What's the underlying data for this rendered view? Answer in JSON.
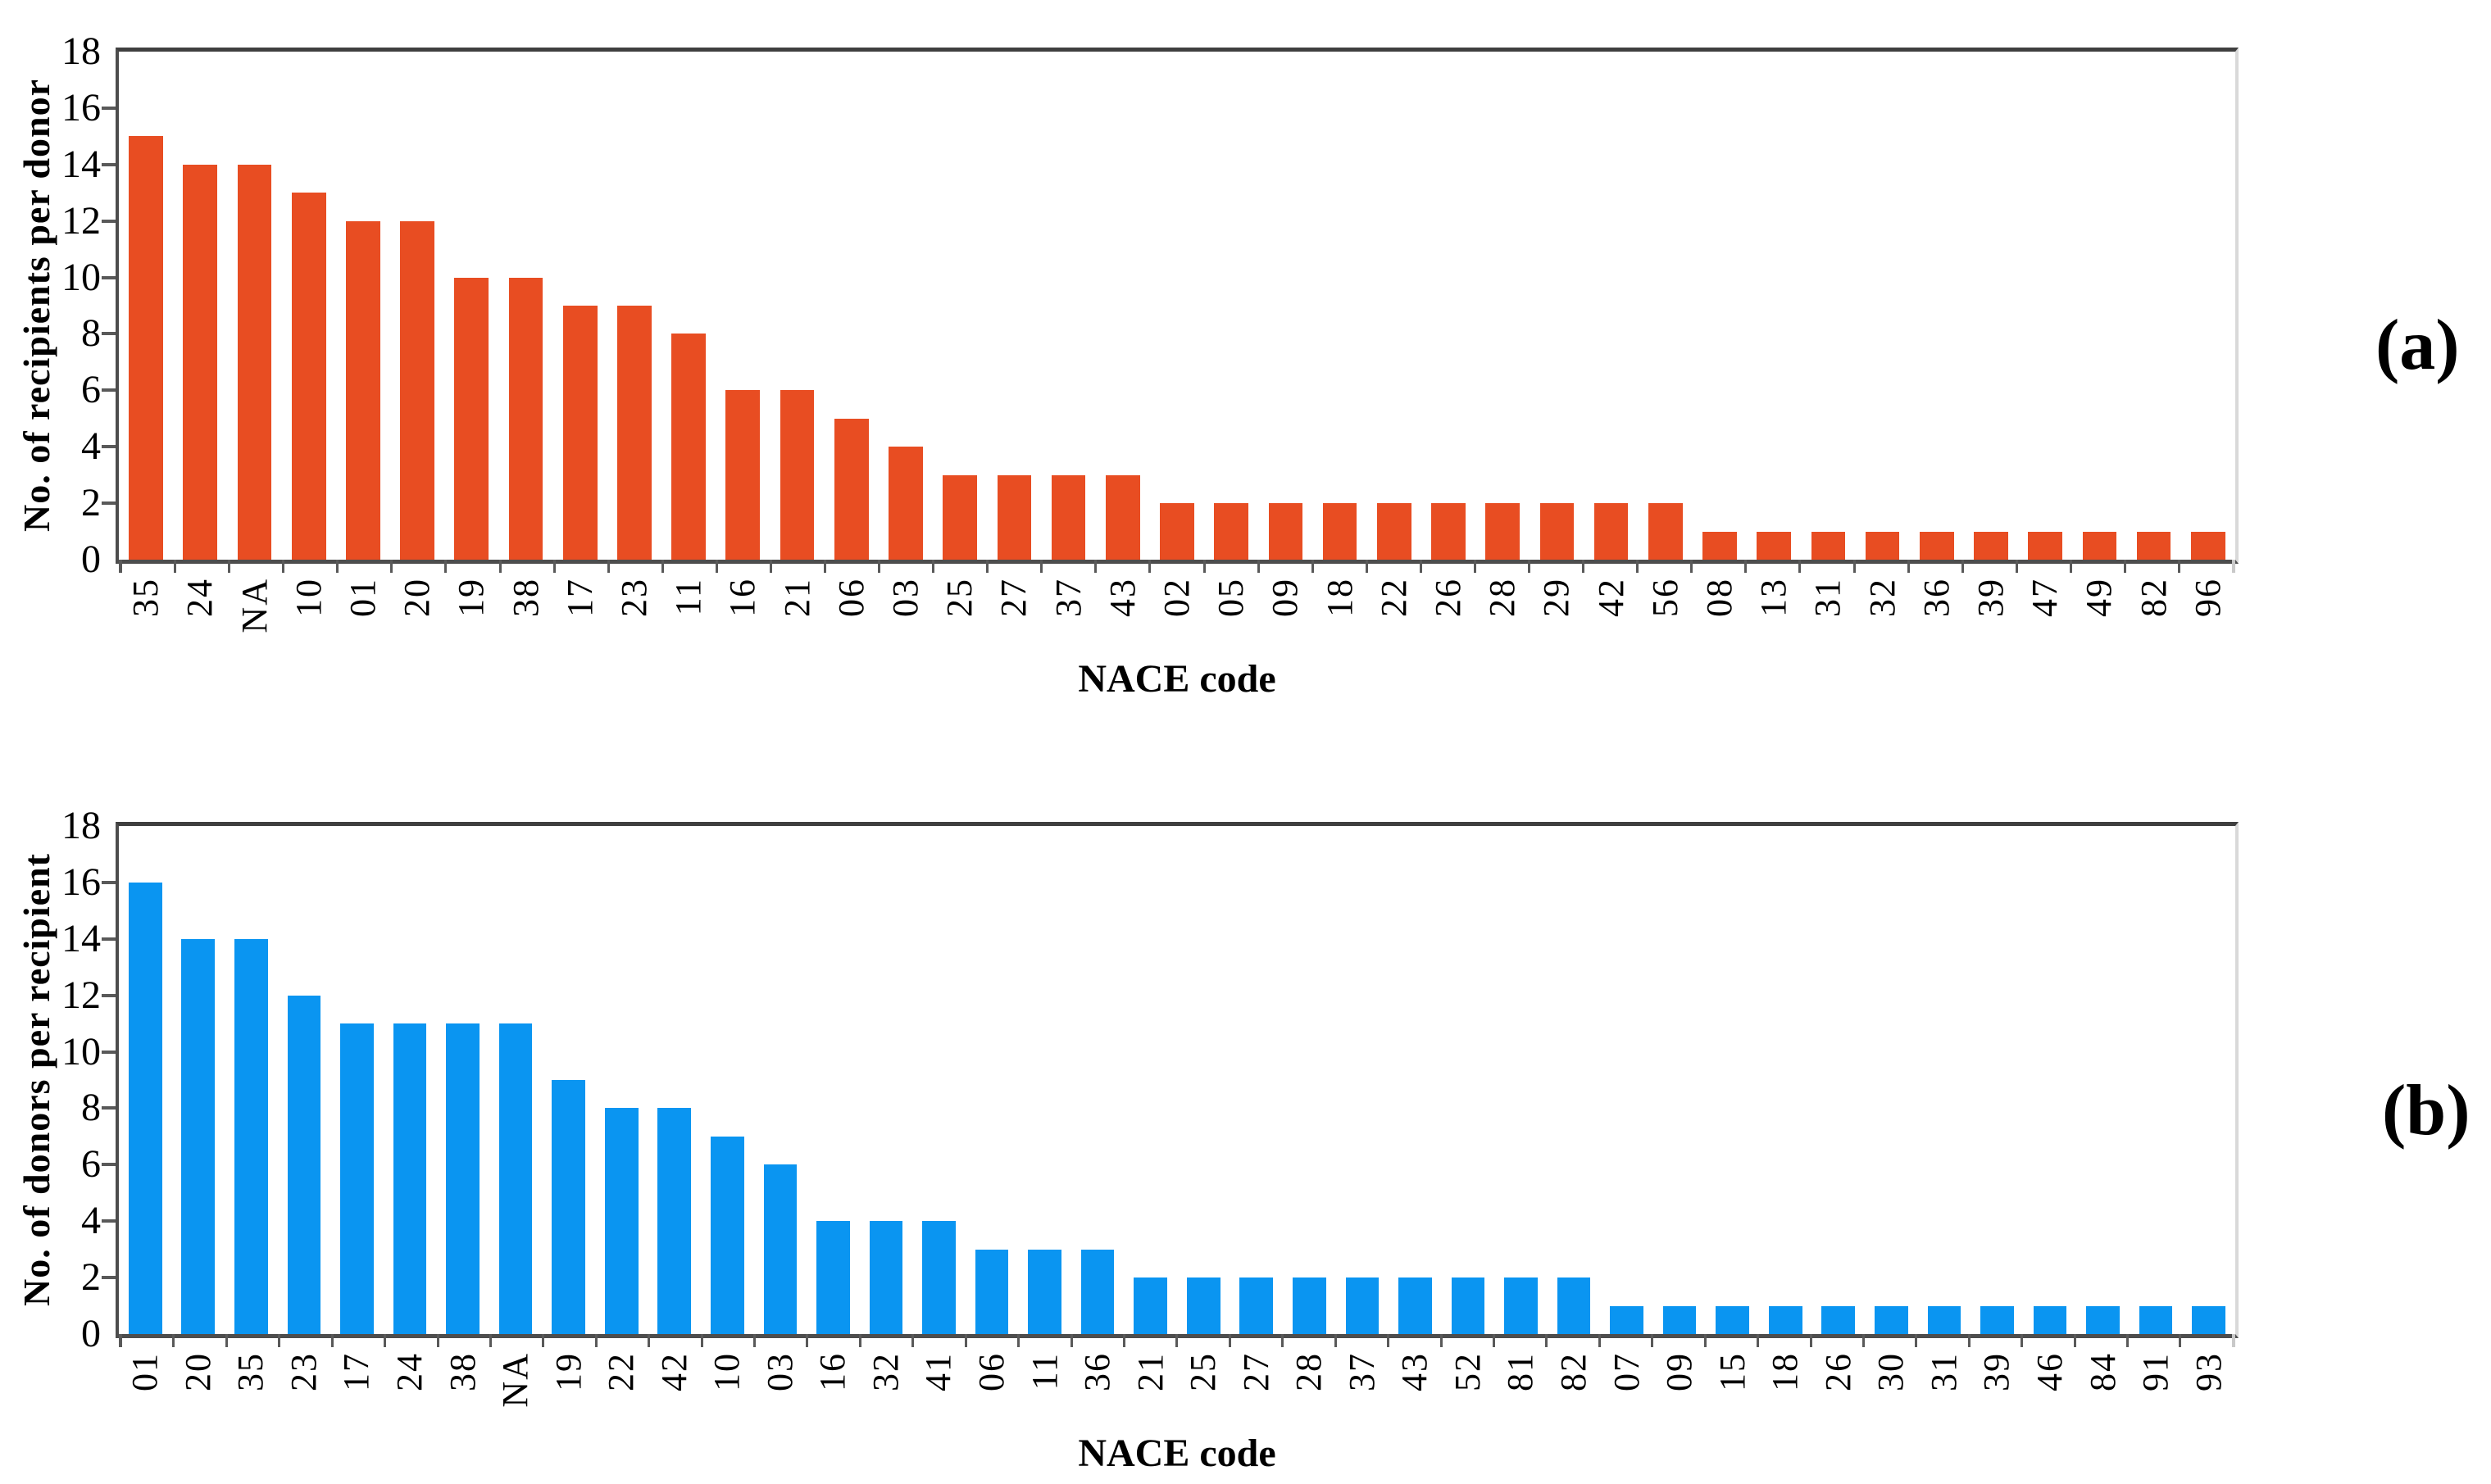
{
  "figure": {
    "background": "#ffffff"
  },
  "chart_data": [
    {
      "id": "a",
      "type": "bar",
      "panel_label": "(a)",
      "title": "",
      "xlabel": "NACE code",
      "ylabel": "No. of recipients per donor",
      "bar_color": "#E84D22",
      "ylim": [
        0,
        18
      ],
      "yticks": [
        0,
        2,
        4,
        6,
        8,
        10,
        12,
        14,
        16,
        18
      ],
      "grid": false,
      "legend": "none",
      "categories": [
        "35",
        "24",
        "NA",
        "10",
        "01",
        "20",
        "19",
        "38",
        "17",
        "23",
        "11",
        "16",
        "21",
        "06",
        "03",
        "25",
        "27",
        "37",
        "43",
        "02",
        "05",
        "09",
        "18",
        "22",
        "26",
        "28",
        "29",
        "42",
        "56",
        "08",
        "13",
        "31",
        "32",
        "36",
        "39",
        "47",
        "49",
        "82",
        "96"
      ],
      "values": [
        15,
        14,
        14,
        13,
        12,
        12,
        10,
        10,
        9,
        9,
        8,
        6,
        6,
        5,
        4,
        3,
        3,
        3,
        3,
        2,
        2,
        2,
        2,
        2,
        2,
        2,
        2,
        2,
        2,
        1,
        1,
        1,
        1,
        1,
        1,
        1,
        1,
        1,
        1
      ]
    },
    {
      "id": "b",
      "type": "bar",
      "panel_label": "(b)",
      "title": "",
      "xlabel": "NACE code",
      "ylabel": "No. of donors per recipient",
      "bar_color": "#0A95F1",
      "ylim": [
        0,
        18
      ],
      "yticks": [
        0,
        2,
        4,
        6,
        8,
        10,
        12,
        14,
        16,
        18
      ],
      "grid": false,
      "legend": "none",
      "categories": [
        "01",
        "20",
        "35",
        "23",
        "17",
        "24",
        "38",
        "NA",
        "19",
        "22",
        "42",
        "10",
        "03",
        "16",
        "32",
        "41",
        "06",
        "11",
        "36",
        "21",
        "25",
        "27",
        "28",
        "37",
        "43",
        "52",
        "81",
        "82",
        "07",
        "09",
        "15",
        "18",
        "26",
        "30",
        "31",
        "39",
        "46",
        "84",
        "91",
        "93"
      ],
      "values": [
        16,
        14,
        14,
        12,
        11,
        11,
        11,
        11,
        9,
        8,
        8,
        7,
        6,
        4,
        4,
        4,
        3,
        3,
        3,
        2,
        2,
        2,
        2,
        2,
        2,
        2,
        2,
        2,
        1,
        1,
        1,
        1,
        1,
        1,
        1,
        1,
        1,
        1,
        1,
        1
      ]
    }
  ]
}
